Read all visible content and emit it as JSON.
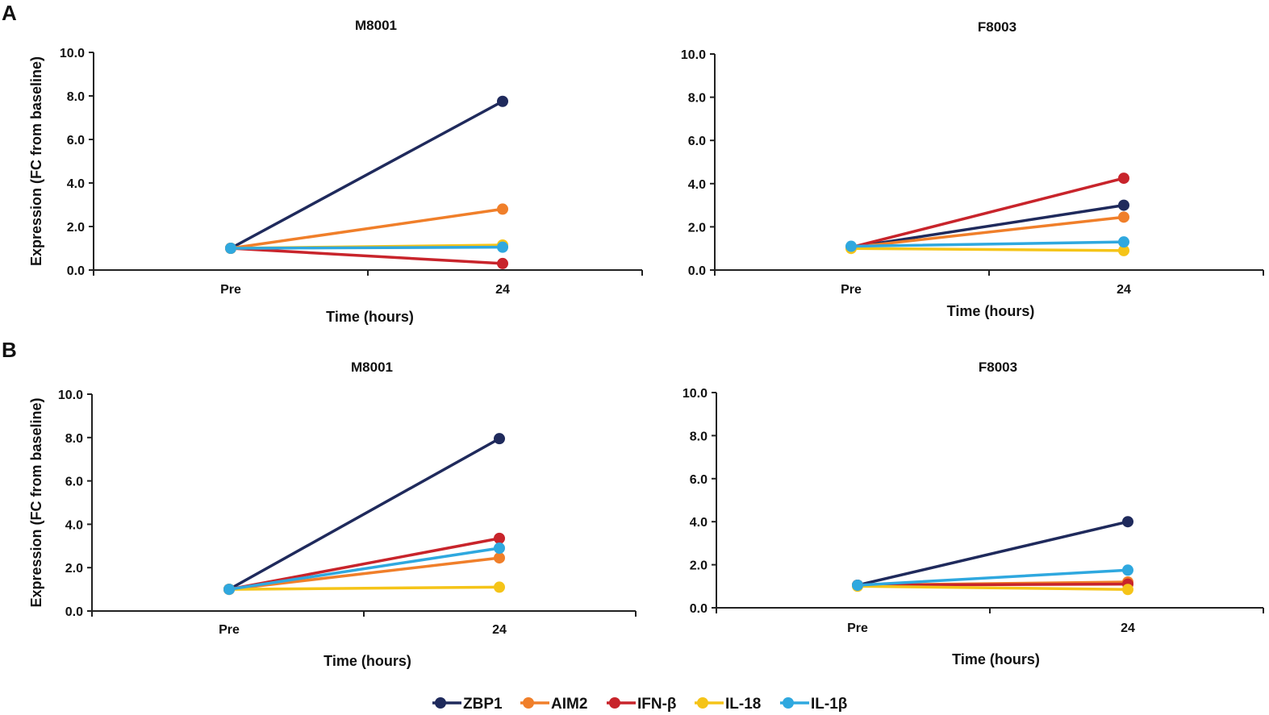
{
  "panel_labels": [
    "A",
    "B"
  ],
  "y_axis_title": "Expression (FC from baseline)",
  "legend": [
    {
      "name": "ZBP1",
      "color": "#1f2a5c"
    },
    {
      "name": "AIM2",
      "color": "#f07f2a"
    },
    {
      "name": "IFN-β",
      "color": "#c8242b"
    },
    {
      "name": "IL-18",
      "color": "#f5c418"
    },
    {
      "name": "IL-1β",
      "color": "#2fa8df"
    }
  ],
  "chart_data": [
    {
      "type": "line",
      "panel": "A",
      "title": "M8001",
      "xlabel": "Time (hours)",
      "ylabel": "Expression (FC from baseline)",
      "categories": [
        "Pre",
        "24"
      ],
      "ylim": [
        0,
        10
      ],
      "yticks": [
        "0.0",
        "2.0",
        "4.0",
        "6.0",
        "8.0",
        "10.0"
      ],
      "series": [
        {
          "name": "ZBP1",
          "values": [
            1.0,
            7.75
          ]
        },
        {
          "name": "AIM2",
          "values": [
            1.0,
            2.8
          ]
        },
        {
          "name": "IFN-β",
          "values": [
            1.0,
            0.3
          ]
        },
        {
          "name": "IL-18",
          "values": [
            1.0,
            1.15
          ]
        },
        {
          "name": "IL-1β",
          "values": [
            1.0,
            1.05
          ]
        }
      ]
    },
    {
      "type": "line",
      "panel": "A",
      "title": "F8003",
      "xlabel": "Time (hours)",
      "ylabel": "",
      "categories": [
        "Pre",
        "24"
      ],
      "ylim": [
        0,
        10
      ],
      "yticks": [
        "0.0",
        "2.0",
        "4.0",
        "6.0",
        "8.0",
        "10.0"
      ],
      "series": [
        {
          "name": "ZBP1",
          "values": [
            1.05,
            3.0
          ]
        },
        {
          "name": "AIM2",
          "values": [
            1.05,
            2.45
          ]
        },
        {
          "name": "IFN-β",
          "values": [
            1.05,
            4.25
          ]
        },
        {
          "name": "IL-18",
          "values": [
            1.0,
            0.9
          ]
        },
        {
          "name": "IL-1β",
          "values": [
            1.1,
            1.3
          ]
        }
      ]
    },
    {
      "type": "line",
      "panel": "B",
      "title": "M8001",
      "xlabel": "Time (hours)",
      "ylabel": "Expression (FC from baseline)",
      "categories": [
        "Pre",
        "24"
      ],
      "ylim": [
        0,
        10
      ],
      "yticks": [
        "0.0",
        "2.0",
        "4.0",
        "6.0",
        "8.0",
        "10.0"
      ],
      "series": [
        {
          "name": "ZBP1",
          "values": [
            1.0,
            7.95
          ]
        },
        {
          "name": "AIM2",
          "values": [
            1.0,
            2.45
          ]
        },
        {
          "name": "IFN-β",
          "values": [
            1.0,
            3.35
          ]
        },
        {
          "name": "IL-18",
          "values": [
            1.0,
            1.1
          ]
        },
        {
          "name": "IL-1β",
          "values": [
            1.0,
            2.9
          ]
        }
      ]
    },
    {
      "type": "line",
      "panel": "B",
      "title": "F8003",
      "xlabel": "Time (hours)",
      "ylabel": "",
      "categories": [
        "Pre",
        "24"
      ],
      "ylim": [
        0,
        10
      ],
      "yticks": [
        "0.0",
        "2.0",
        "4.0",
        "6.0",
        "8.0",
        "10.0"
      ],
      "series": [
        {
          "name": "ZBP1",
          "values": [
            1.05,
            4.0
          ]
        },
        {
          "name": "AIM2",
          "values": [
            1.05,
            1.2
          ]
        },
        {
          "name": "IFN-β",
          "values": [
            1.05,
            1.1
          ]
        },
        {
          "name": "IL-18",
          "values": [
            1.0,
            0.85
          ]
        },
        {
          "name": "IL-1β",
          "values": [
            1.05,
            1.75
          ]
        }
      ]
    }
  ]
}
